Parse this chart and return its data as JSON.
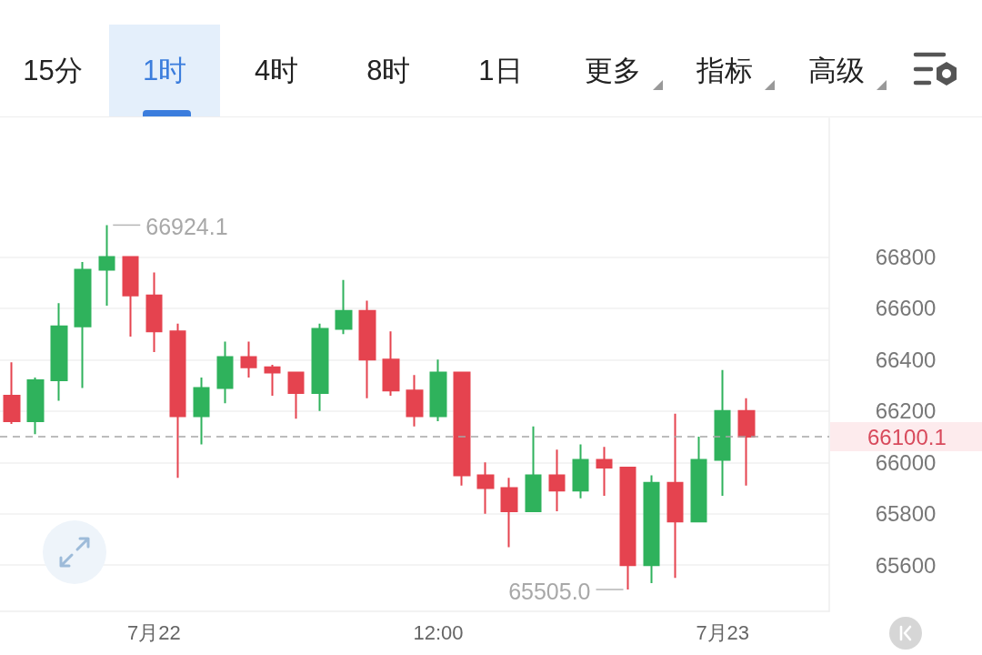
{
  "chart_data": {
    "type": "candlestick",
    "categories": [
      null,
      null,
      null,
      null,
      null,
      null,
      "7月22",
      null,
      null,
      null,
      null,
      null,
      null,
      null,
      null,
      null,
      null,
      null,
      "12:00",
      null,
      null,
      null,
      null,
      null,
      null,
      null,
      null,
      null,
      null,
      null,
      "7月23",
      null
    ],
    "ohlc": [
      [
        66260,
        66390,
        66150,
        66160
      ],
      [
        66160,
        66330,
        66110,
        66320
      ],
      [
        66320,
        66620,
        66240,
        66530
      ],
      [
        66530,
        66780,
        66290,
        66750
      ],
      [
        66750,
        66924.1,
        66610,
        66800
      ],
      [
        66800,
        66800,
        66490,
        66650
      ],
      [
        66650,
        66740,
        66430,
        66510
      ],
      [
        66510,
        66540,
        65940,
        66180
      ],
      [
        66180,
        66330,
        66070,
        66290
      ],
      [
        66290,
        66470,
        66230,
        66410
      ],
      [
        66410,
        66470,
        66330,
        66370
      ],
      [
        66370,
        66380,
        66260,
        66350
      ],
      [
        66350,
        66350,
        66170,
        66270
      ],
      [
        66270,
        66540,
        66200,
        66520
      ],
      [
        66520,
        66710,
        66500,
        66590
      ],
      [
        66590,
        66630,
        66250,
        66400
      ],
      [
        66400,
        66510,
        66260,
        66280
      ],
      [
        66280,
        66340,
        66140,
        66180
      ],
      [
        66180,
        66400,
        66160,
        66350
      ],
      [
        66350,
        66350,
        65910,
        65950
      ],
      [
        65950,
        66000,
        65800,
        65900
      ],
      [
        65900,
        65940,
        65670,
        65810
      ],
      [
        65810,
        66140,
        65810,
        65950
      ],
      [
        65950,
        66050,
        65810,
        65890
      ],
      [
        65890,
        66070,
        65860,
        66010
      ],
      [
        66010,
        66060,
        65870,
        65980
      ],
      [
        65980,
        65980,
        65505.0,
        65600
      ],
      [
        65600,
        65950,
        65530,
        65920
      ],
      [
        65920,
        66190,
        65550,
        65770
      ],
      [
        65770,
        66100,
        65770,
        66010
      ],
      [
        66010,
        66360,
        65870,
        66200
      ],
      [
        66200,
        66250,
        65910,
        66100.1
      ]
    ],
    "colors": [
      "#e5434f",
      "#2fb25c",
      "#2fb25c",
      "#2fb25c",
      "#2fb25c",
      "#e5434f",
      "#e5434f",
      "#e5434f",
      "#2fb25c",
      "#2fb25c",
      "#e5434f",
      "#e5434f",
      "#e5434f",
      "#2fb25c",
      "#2fb25c",
      "#e5434f",
      "#e5434f",
      "#e5434f",
      "#2fb25c",
      "#e5434f",
      "#e5434f",
      "#e5434f",
      "#2fb25c",
      "#e5434f",
      "#2fb25c",
      "#e5434f",
      "#e5434f",
      "#2fb25c",
      "#e5434f",
      "#2fb25c",
      "#2fb25c",
      "#e5434f"
    ],
    "ylim": [
      65420,
      67340
    ],
    "yticks": [
      65600,
      65800,
      66000,
      66200,
      66400,
      66600,
      66800
    ],
    "grid": "y",
    "ref_lines": [
      {
        "axis": "y",
        "value": 66100.1,
        "label": "66100.1",
        "color": "#a6a6a6",
        "line_style": "dashed"
      }
    ],
    "annotations": [
      "15分",
      "1时",
      "4时",
      "8时",
      "1日",
      "更多",
      "指标",
      "高级",
      "66924.1",
      "65505.0"
    ]
  }
}
